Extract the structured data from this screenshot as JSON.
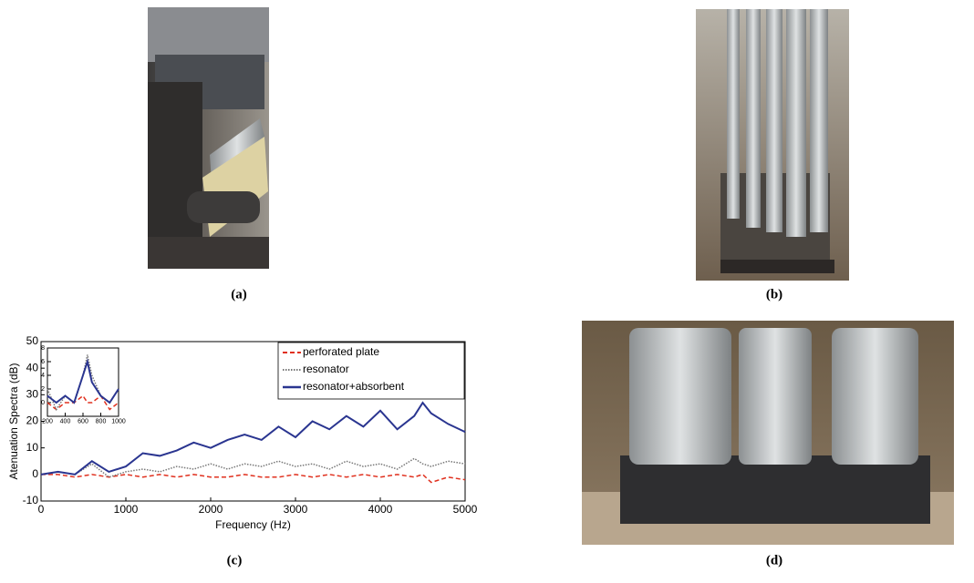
{
  "captions": [
    "(a)",
    "(b)",
    "(c)",
    "(d)"
  ],
  "chart_data": {
    "type": "line",
    "xlabel": "Frequency (Hz)",
    "ylabel": "Atenuation Spectra (dB)",
    "xlim": [
      0,
      5000
    ],
    "xticks": [
      0,
      1000,
      2000,
      3000,
      4000,
      5000
    ],
    "ylim": [
      -10,
      50
    ],
    "yticks": [
      -10,
      0,
      10,
      20,
      30,
      40,
      50
    ],
    "legend": "upper right",
    "grid": false,
    "x": [
      0,
      200,
      400,
      600,
      800,
      1000,
      1200,
      1400,
      1600,
      1800,
      2000,
      2200,
      2400,
      2600,
      2800,
      3000,
      3200,
      3400,
      3600,
      3800,
      4000,
      4200,
      4400,
      4500,
      4600,
      4800,
      5000
    ],
    "series": [
      {
        "name": "perforated plate",
        "color": "#e0301e",
        "dash": "dashed",
        "values": [
          0,
          0,
          -1,
          0,
          -1,
          0,
          -1,
          0,
          -1,
          0,
          -1,
          -1,
          0,
          -1,
          -1,
          0,
          -1,
          0,
          -1,
          0,
          -1,
          0,
          -1,
          0,
          -3,
          -1,
          -2
        ]
      },
      {
        "name": "resonator",
        "color": "#777777",
        "dash": "dotted",
        "values": [
          0,
          1,
          0,
          4,
          -1,
          1,
          2,
          1,
          3,
          2,
          4,
          2,
          4,
          3,
          5,
          3,
          4,
          2,
          5,
          3,
          4,
          2,
          6,
          4,
          3,
          5,
          4
        ]
      },
      {
        "name": "resonator+absorbent",
        "color": "#2a3590",
        "dash": "solid",
        "values": [
          0,
          1,
          0,
          5,
          1,
          3,
          8,
          7,
          9,
          12,
          10,
          13,
          15,
          13,
          18,
          14,
          20,
          17,
          22,
          18,
          24,
          17,
          22,
          27,
          23,
          19,
          16
        ]
      }
    ],
    "inset": {
      "xlim": [
        200,
        1000
      ],
      "xticks": [
        200,
        400,
        600,
        800,
        1000
      ],
      "ylim": [
        -2,
        8
      ],
      "yticks": [
        0,
        2,
        4,
        6,
        8
      ],
      "x": [
        200,
        300,
        400,
        500,
        600,
        650,
        700,
        800,
        900,
        1000
      ],
      "series": [
        {
          "color": "#e0301e",
          "dash": "dashed",
          "values": [
            0,
            -1,
            0,
            0,
            1,
            0,
            0,
            1,
            -1,
            0
          ]
        },
        {
          "color": "#777777",
          "dash": "dotted",
          "values": [
            2,
            -1,
            1,
            0,
            4,
            7,
            4,
            1,
            0,
            2
          ]
        },
        {
          "color": "#2a3590",
          "dash": "solid",
          "values": [
            1,
            0,
            1,
            0,
            4,
            6,
            3,
            1,
            0,
            2
          ]
        }
      ]
    }
  }
}
